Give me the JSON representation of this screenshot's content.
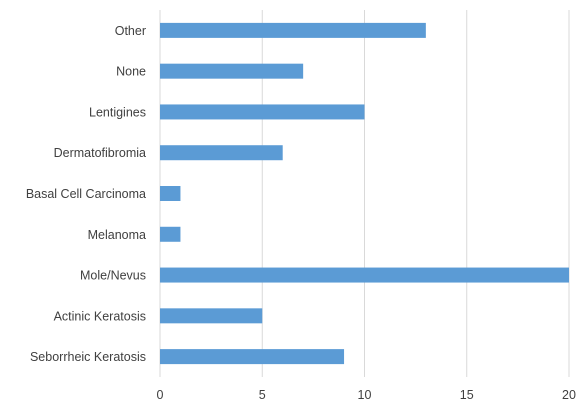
{
  "chart_data": {
    "type": "bar",
    "orientation": "horizontal",
    "categories": [
      "Other",
      "None",
      "Lentigines",
      "Dermatofibromia",
      "Basal Cell Carcinoma",
      "Melanoma",
      "Mole/Nevus",
      "Actinic Keratosis",
      "Seborrheic Keratosis"
    ],
    "values": [
      13,
      7,
      10,
      6,
      1,
      1,
      20,
      5,
      9
    ],
    "xlim": [
      0,
      20
    ],
    "x_ticks": [
      "0",
      "5",
      "10",
      "15",
      "20"
    ],
    "grid": true,
    "bar_color": "#5b9bd5",
    "title": "",
    "xlabel": "",
    "ylabel": ""
  }
}
